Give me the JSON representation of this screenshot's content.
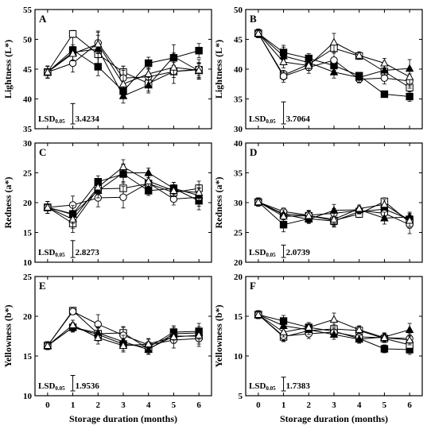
{
  "figure": {
    "xlabel": "Storage duration (months)",
    "lsd_prefix": "LSD",
    "lsd_subscript": "0.05",
    "marker_styles": {
      "filled_square": {
        "fill": "#000000"
      },
      "open_square": {
        "fill": "#ffffff"
      },
      "open_circle": {
        "fill": "#ffffff"
      },
      "filled_triangle": {
        "fill": "#000000"
      },
      "open_triangle": {
        "fill": "#ffffff"
      }
    }
  },
  "chart_data": [
    {
      "panel": "A",
      "type": "line",
      "ylabel": "Lightness (L*)",
      "x": [
        0,
        1,
        2,
        3,
        4,
        5,
        6
      ],
      "xlim": [
        -0.5,
        6.5
      ],
      "ylim": [
        35,
        55
      ],
      "yticks": [
        35,
        40,
        45,
        50,
        55
      ],
      "lsd": {
        "label": "3.4234",
        "value": 3.4234
      },
      "series": [
        {
          "marker": "filled_square",
          "values": [
            44.5,
            48.2,
            45.4,
            41.3,
            46.0,
            46.9,
            48.1
          ],
          "errors": [
            1.0,
            2.4,
            1.5,
            1.2,
            1.0,
            0.8,
            1.2
          ]
        },
        {
          "marker": "open_square",
          "values": [
            44.5,
            50.9,
            47.5,
            44.5,
            42.6,
            44.6,
            44.9
          ],
          "errors": [
            1.0,
            0.6,
            2.0,
            1.0,
            1.3,
            1.0,
            1.0
          ]
        },
        {
          "marker": "open_circle",
          "values": [
            44.5,
            46.0,
            49.4,
            43.5,
            43.7,
            44.6,
            45.0
          ],
          "errors": [
            1.0,
            1.5,
            1.8,
            2.0,
            1.3,
            2.0,
            1.6
          ]
        },
        {
          "marker": "filled_triangle",
          "values": [
            44.5,
            47.8,
            48.4,
            40.5,
            42.3,
            47.1,
            44.7
          ],
          "errors": [
            1.0,
            1.3,
            3.0,
            1.2,
            1.3,
            2.0,
            1.4
          ]
        },
        {
          "marker": "open_triangle",
          "values": [
            44.5,
            47.6,
            49.2,
            42.5,
            44.2,
            45.3,
            44.8
          ],
          "errors": [
            1.0,
            1.2,
            1.5,
            2.3,
            1.0,
            1.2,
            1.2
          ]
        }
      ]
    },
    {
      "panel": "B",
      "type": "line",
      "ylabel": "Lightness (L*)",
      "x": [
        0,
        1,
        2,
        3,
        4,
        5,
        6
      ],
      "xlim": [
        -0.5,
        6.5
      ],
      "ylim": [
        30,
        50
      ],
      "yticks": [
        30,
        35,
        40,
        45,
        50
      ],
      "lsd": {
        "label": "3.7064",
        "value": 3.7064
      },
      "series": [
        {
          "marker": "filled_square",
          "values": [
            46.0,
            42.8,
            41.8,
            40.6,
            38.9,
            35.8,
            35.4
          ],
          "errors": [
            0.7,
            1.2,
            0.8,
            0.8,
            0.5,
            0.4,
            0.8
          ]
        },
        {
          "marker": "open_square",
          "values": [
            46.0,
            39.0,
            40.8,
            43.5,
            42.2,
            39.6,
            36.9
          ],
          "errors": [
            0.7,
            0.8,
            0.8,
            0.8,
            0.5,
            0.6,
            1.0
          ]
        },
        {
          "marker": "open_circle",
          "values": [
            46.0,
            38.8,
            40.3,
            41.5,
            38.3,
            38.5,
            38.0
          ],
          "errors": [
            0.7,
            1.0,
            1.0,
            1.2,
            0.6,
            1.0,
            1.2
          ]
        },
        {
          "marker": "filled_triangle",
          "values": [
            46.0,
            42.2,
            41.1,
            39.5,
            38.6,
            39.8,
            40.1
          ],
          "errors": [
            0.7,
            1.5,
            1.0,
            1.0,
            0.8,
            0.8,
            1.5
          ]
        },
        {
          "marker": "open_triangle",
          "values": [
            46.0,
            41.2,
            40.6,
            44.5,
            42.3,
            41.0,
            38.7
          ],
          "errors": [
            0.7,
            1.0,
            0.8,
            1.5,
            0.6,
            0.8,
            1.5
          ]
        }
      ]
    },
    {
      "panel": "C",
      "type": "line",
      "ylabel": "Redness (a*)",
      "x": [
        0,
        1,
        2,
        3,
        4,
        5,
        6
      ],
      "xlim": [
        -0.5,
        6.5
      ],
      "ylim": [
        10,
        30
      ],
      "yticks": [
        10,
        15,
        20,
        25,
        30
      ],
      "lsd": {
        "label": "2.8273",
        "value": 2.8273
      },
      "series": [
        {
          "marker": "filled_square",
          "values": [
            19.2,
            18.1,
            23.5,
            24.8,
            22.0,
            22.4,
            20.3
          ],
          "errors": [
            1.0,
            1.5,
            1.0,
            1.5,
            0.8,
            1.0,
            1.5
          ]
        },
        {
          "marker": "open_square",
          "values": [
            19.2,
            16.5,
            22.3,
            22.4,
            23.2,
            21.7,
            22.4
          ],
          "errors": [
            1.0,
            1.5,
            1.5,
            2.0,
            1.5,
            1.0,
            1.2
          ]
        },
        {
          "marker": "open_circle",
          "values": [
            19.2,
            19.6,
            20.8,
            20.9,
            23.3,
            20.6,
            20.9
          ],
          "errors": [
            1.0,
            1.5,
            1.5,
            1.8,
            1.2,
            1.0,
            1.5
          ]
        },
        {
          "marker": "filled_triangle",
          "values": [
            19.2,
            18.0,
            22.0,
            25.0,
            25.0,
            22.4,
            21.2
          ],
          "errors": [
            1.0,
            1.5,
            1.2,
            1.5,
            0.8,
            1.0,
            1.3
          ]
        },
        {
          "marker": "open_triangle",
          "values": [
            19.2,
            17.2,
            22.6,
            26.0,
            23.6,
            22.0,
            21.7
          ],
          "errors": [
            1.0,
            1.5,
            1.2,
            1.2,
            1.5,
            1.0,
            1.3
          ]
        }
      ]
    },
    {
      "panel": "D",
      "type": "line",
      "ylabel": "Redness (a*)",
      "x": [
        0,
        1,
        2,
        3,
        4,
        5,
        6
      ],
      "xlim": [
        -0.5,
        6.5
      ],
      "ylim": [
        20,
        40
      ],
      "yticks": [
        20,
        25,
        30,
        35,
        40
      ],
      "lsd": {
        "label": "2.0739",
        "value": 2.0739
      },
      "series": [
        {
          "marker": "filled_square",
          "values": [
            30.1,
            26.3,
            27.3,
            26.9,
            28.5,
            28.9,
            27.2
          ],
          "errors": [
            0.7,
            1.2,
            0.8,
            1.0,
            0.8,
            0.8,
            1.0
          ]
        },
        {
          "marker": "open_square",
          "values": [
            30.1,
            28.1,
            27.8,
            27.0,
            28.1,
            30.2,
            26.7
          ],
          "errors": [
            0.7,
            0.6,
            0.8,
            1.0,
            0.6,
            0.6,
            1.0
          ]
        },
        {
          "marker": "open_circle",
          "values": [
            30.1,
            28.5,
            27.9,
            28.2,
            28.7,
            28.2,
            26.3
          ],
          "errors": [
            0.7,
            0.6,
            0.8,
            0.8,
            0.6,
            0.6,
            1.5
          ]
        },
        {
          "marker": "filled_triangle",
          "values": [
            30.1,
            28.0,
            27.2,
            28.7,
            28.8,
            27.4,
            27.6
          ],
          "errors": [
            0.7,
            0.8,
            0.6,
            1.0,
            0.6,
            1.0,
            0.8
          ]
        },
        {
          "marker": "open_triangle",
          "values": [
            30.1,
            27.7,
            27.8,
            27.2,
            29.0,
            29.7,
            27.0
          ],
          "errors": [
            0.7,
            0.6,
            0.8,
            1.0,
            0.6,
            0.8,
            1.0
          ]
        }
      ]
    },
    {
      "panel": "E",
      "type": "line",
      "ylabel": "Yellowness (b*)",
      "x": [
        0,
        1,
        2,
        3,
        4,
        5,
        6
      ],
      "xlim": [
        -0.5,
        6.5
      ],
      "ylim": [
        10,
        25
      ],
      "yticks": [
        10,
        15,
        20,
        25
      ],
      "lsd": {
        "label": "1.9536",
        "value": 1.9536
      },
      "series": [
        {
          "marker": "filled_square",
          "values": [
            16.3,
            18.6,
            17.7,
            16.5,
            16.1,
            18.0,
            18.1
          ],
          "errors": [
            0.5,
            0.5,
            0.8,
            0.8,
            0.6,
            0.8,
            1.0
          ]
        },
        {
          "marker": "open_square",
          "values": [
            16.3,
            20.7,
            17.8,
            17.9,
            15.9,
            17.5,
            17.5
          ],
          "errors": [
            0.5,
            0.3,
            0.8,
            0.8,
            0.6,
            0.8,
            1.0
          ]
        },
        {
          "marker": "open_circle",
          "values": [
            16.3,
            20.6,
            19.0,
            17.6,
            16.4,
            17.0,
            17.2
          ],
          "errors": [
            0.5,
            0.4,
            1.2,
            1.0,
            0.8,
            1.0,
            1.0
          ]
        },
        {
          "marker": "filled_triangle",
          "values": [
            16.3,
            18.6,
            17.9,
            16.8,
            15.8,
            17.8,
            17.9
          ],
          "errors": [
            0.5,
            0.6,
            0.8,
            0.8,
            0.6,
            0.8,
            0.8
          ]
        },
        {
          "marker": "open_triangle",
          "values": [
            16.3,
            18.9,
            17.3,
            16.3,
            16.5,
            17.4,
            17.6
          ],
          "errors": [
            0.5,
            0.6,
            0.8,
            0.8,
            0.6,
            0.8,
            0.8
          ]
        }
      ]
    },
    {
      "panel": "F",
      "type": "line",
      "ylabel": "Yellowness (b*)",
      "x": [
        0,
        1,
        2,
        3,
        4,
        5,
        6
      ],
      "xlim": [
        -0.5,
        6.5
      ],
      "ylim": [
        5,
        20
      ],
      "yticks": [
        5,
        10,
        15,
        20
      ],
      "lsd": {
        "label": "1.7383",
        "value": 1.7383
      },
      "series": [
        {
          "marker": "filled_square",
          "values": [
            15.2,
            14.4,
            13.6,
            13.1,
            12.2,
            10.9,
            10.8
          ],
          "errors": [
            0.5,
            0.7,
            0.6,
            0.6,
            0.5,
            0.5,
            0.6
          ]
        },
        {
          "marker": "open_square",
          "values": [
            15.2,
            12.4,
            13.2,
            13.4,
            13.2,
            12.2,
            11.4
          ],
          "errors": [
            0.5,
            0.6,
            0.6,
            0.6,
            0.5,
            0.5,
            0.6
          ]
        },
        {
          "marker": "open_circle",
          "values": [
            15.2,
            12.5,
            12.8,
            13.0,
            12.4,
            12.3,
            12.2
          ],
          "errors": [
            0.5,
            0.6,
            0.6,
            0.6,
            0.5,
            0.5,
            0.6
          ]
        },
        {
          "marker": "filled_triangle",
          "values": [
            15.2,
            13.8,
            13.3,
            12.7,
            12.1,
            12.4,
            13.3
          ],
          "errors": [
            0.5,
            0.6,
            0.6,
            0.6,
            0.5,
            0.5,
            0.8
          ]
        },
        {
          "marker": "open_triangle",
          "values": [
            15.2,
            13.0,
            13.6,
            14.6,
            13.3,
            12.3,
            12.0
          ],
          "errors": [
            0.5,
            0.6,
            0.6,
            0.8,
            0.5,
            0.6,
            0.6
          ]
        }
      ]
    }
  ]
}
